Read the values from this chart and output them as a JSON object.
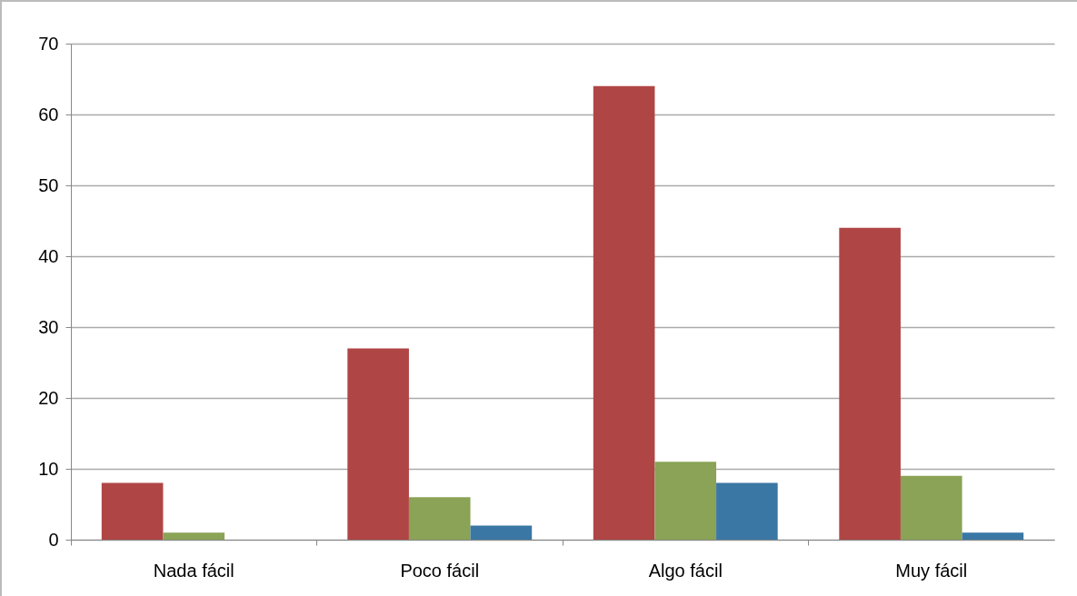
{
  "chart_data": {
    "type": "bar",
    "categories": [
      "Nada fácil",
      "Poco fácil",
      "Algo fácil",
      "Muy fácil"
    ],
    "series": [
      {
        "color": "#b04545",
        "values": [
          8,
          27,
          64,
          44
        ]
      },
      {
        "color": "#8aa356",
        "values": [
          1,
          6,
          11,
          9
        ]
      },
      {
        "color": "#3a77a4",
        "values": [
          0,
          2,
          8,
          1
        ]
      }
    ],
    "ylim": [
      0,
      70
    ],
    "yticks": [
      0,
      10,
      20,
      30,
      40,
      50,
      60,
      70
    ],
    "grid": "y",
    "legend": false
  }
}
